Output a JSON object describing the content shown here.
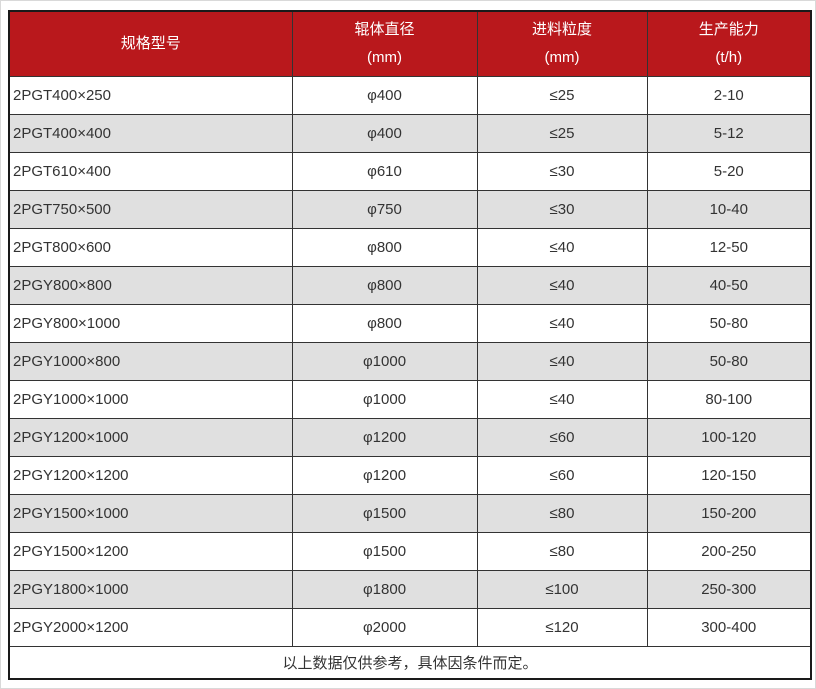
{
  "colors": {
    "header_bg": "#b9181c",
    "header_text": "#ffffff",
    "row_bg": "#ffffff",
    "row_alt_bg": "#e0e0e0",
    "border_dark": "#1a1a1a",
    "cell_border": "#333333",
    "text": "#333333"
  },
  "table": {
    "columns": [
      {
        "label": "规格型号",
        "unit": ""
      },
      {
        "label": "辊体直径",
        "unit": "(mm)"
      },
      {
        "label": "进料粒度",
        "unit": "(mm)"
      },
      {
        "label": "生产能力",
        "unit": "(t/h)"
      }
    ],
    "rows": [
      [
        "2PGT400×250",
        "φ400",
        "≤25",
        "2-10"
      ],
      [
        "2PGT400×400",
        "φ400",
        "≤25",
        "5-12"
      ],
      [
        "2PGT610×400",
        "φ610",
        "≤30",
        "5-20"
      ],
      [
        "2PGT750×500",
        "φ750",
        "≤30",
        "10-40"
      ],
      [
        "2PGT800×600",
        "φ800",
        "≤40",
        "12-50"
      ],
      [
        "2PGY800×800",
        "φ800",
        "≤40",
        "40-50"
      ],
      [
        "2PGY800×1000",
        "φ800",
        "≤40",
        "50-80"
      ],
      [
        "2PGY1000×800",
        "φ1000",
        "≤40",
        "50-80"
      ],
      [
        "2PGY1000×1000",
        "φ1000",
        "≤40",
        "80-100"
      ],
      [
        "2PGY1200×1000",
        "φ1200",
        "≤60",
        "100-120"
      ],
      [
        "2PGY1200×1200",
        "φ1200",
        "≤60",
        "120-150"
      ],
      [
        "2PGY1500×1000",
        "φ1500",
        "≤80",
        "150-200"
      ],
      [
        "2PGY1500×1200",
        "φ1500",
        "≤80",
        "200-250"
      ],
      [
        "2PGY1800×1000",
        "φ1800",
        "≤100",
        "250-300"
      ],
      [
        "2PGY2000×1200",
        "φ2000",
        "≤120",
        "300-400"
      ]
    ],
    "footnote": "以上数据仅供参考，具体因条件而定。"
  }
}
